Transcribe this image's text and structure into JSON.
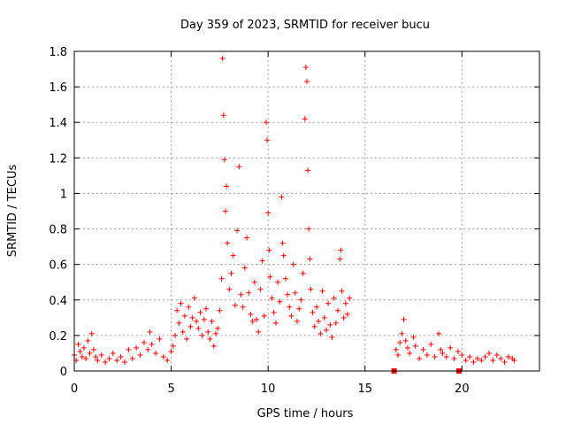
{
  "chart_data": {
    "type": "scatter",
    "title": "Day 359 of 2023, SRMTID for receiver bucu",
    "xlabel": "GPS time / hours",
    "ylabel": "SRMTID / TECUs",
    "xlim": [
      0,
      24
    ],
    "ylim": [
      0,
      1.8
    ],
    "xticks": [
      0,
      5,
      10,
      15,
      20
    ],
    "xtick_labels": [
      "0",
      "5",
      "10",
      "15",
      "20"
    ],
    "yticks": [
      0,
      0.2,
      0.4,
      0.6,
      0.8,
      1,
      1.2,
      1.4,
      1.6,
      1.8
    ],
    "ytick_labels": [
      "0",
      "0.2",
      "0.4",
      "0.6",
      "0.8",
      "1",
      "1.2",
      "1.4",
      "1.6",
      "1.8"
    ],
    "grid": true,
    "series": [
      {
        "name": "SRMTID",
        "marker": "plus",
        "color": "#ff0000",
        "points": [
          [
            0.0,
            0.09
          ],
          [
            0.1,
            0.06
          ],
          [
            0.2,
            0.15
          ],
          [
            0.3,
            0.11
          ],
          [
            0.4,
            0.08
          ],
          [
            0.5,
            0.13
          ],
          [
            0.6,
            0.07
          ],
          [
            0.7,
            0.17
          ],
          [
            0.8,
            0.1
          ],
          [
            0.9,
            0.21
          ],
          [
            1.0,
            0.12
          ],
          [
            1.1,
            0.08
          ],
          [
            1.2,
            0.06
          ],
          [
            1.4,
            0.09
          ],
          [
            1.6,
            0.05
          ],
          [
            1.8,
            0.07
          ],
          [
            2.0,
            0.1
          ],
          [
            2.2,
            0.06
          ],
          [
            2.4,
            0.08
          ],
          [
            2.6,
            0.05
          ],
          [
            2.8,
            0.12
          ],
          [
            3.0,
            0.07
          ],
          [
            3.2,
            0.13
          ],
          [
            3.4,
            0.09
          ],
          [
            3.6,
            0.16
          ],
          [
            3.8,
            0.12
          ],
          [
            3.9,
            0.22
          ],
          [
            4.0,
            0.15
          ],
          [
            4.2,
            0.1
          ],
          [
            4.4,
            0.18
          ],
          [
            4.6,
            0.08
          ],
          [
            4.8,
            0.06
          ],
          [
            5.0,
            0.11
          ],
          [
            5.1,
            0.14
          ],
          [
            5.2,
            0.2
          ],
          [
            5.3,
            0.34
          ],
          [
            5.4,
            0.27
          ],
          [
            5.5,
            0.38
          ],
          [
            5.6,
            0.22
          ],
          [
            5.7,
            0.31
          ],
          [
            5.8,
            0.18
          ],
          [
            5.9,
            0.36
          ],
          [
            6.0,
            0.25
          ],
          [
            6.1,
            0.3
          ],
          [
            6.2,
            0.41
          ],
          [
            6.3,
            0.28
          ],
          [
            6.4,
            0.24
          ],
          [
            6.5,
            0.33
          ],
          [
            6.6,
            0.2
          ],
          [
            6.7,
            0.29
          ],
          [
            6.8,
            0.35
          ],
          [
            6.9,
            0.22
          ],
          [
            7.0,
            0.18
          ],
          [
            7.1,
            0.28
          ],
          [
            7.2,
            0.14
          ],
          [
            7.3,
            0.21
          ],
          [
            7.4,
            0.24
          ],
          [
            7.5,
            0.34
          ],
          [
            7.6,
            0.52
          ],
          [
            7.65,
            1.76
          ],
          [
            7.7,
            1.44
          ],
          [
            7.75,
            1.19
          ],
          [
            7.8,
            0.9
          ],
          [
            7.85,
            1.04
          ],
          [
            7.9,
            0.72
          ],
          [
            8.0,
            0.46
          ],
          [
            8.1,
            0.55
          ],
          [
            8.2,
            0.65
          ],
          [
            8.3,
            0.37
          ],
          [
            8.4,
            0.79
          ],
          [
            8.5,
            1.15
          ],
          [
            8.6,
            0.43
          ],
          [
            8.7,
            0.36
          ],
          [
            8.8,
            0.58
          ],
          [
            8.9,
            0.75
          ],
          [
            9.0,
            0.44
          ],
          [
            9.1,
            0.32
          ],
          [
            9.2,
            0.28
          ],
          [
            9.3,
            0.5
          ],
          [
            9.4,
            0.29
          ],
          [
            9.5,
            0.22
          ],
          [
            9.6,
            0.46
          ],
          [
            9.7,
            0.62
          ],
          [
            9.8,
            0.31
          ],
          [
            9.9,
            1.4
          ],
          [
            9.95,
            1.3
          ],
          [
            10.0,
            0.89
          ],
          [
            10.05,
            0.68
          ],
          [
            10.1,
            0.53
          ],
          [
            10.2,
            0.41
          ],
          [
            10.3,
            0.33
          ],
          [
            10.4,
            0.27
          ],
          [
            10.5,
            0.5
          ],
          [
            10.6,
            0.39
          ],
          [
            10.7,
            0.98
          ],
          [
            10.75,
            0.72
          ],
          [
            10.8,
            0.65
          ],
          [
            10.9,
            0.52
          ],
          [
            11.0,
            0.43
          ],
          [
            11.1,
            0.36
          ],
          [
            11.2,
            0.31
          ],
          [
            11.3,
            0.6
          ],
          [
            11.4,
            0.44
          ],
          [
            11.5,
            0.28
          ],
          [
            11.6,
            0.35
          ],
          [
            11.7,
            0.4
          ],
          [
            11.8,
            0.55
          ],
          [
            11.9,
            1.42
          ],
          [
            11.95,
            1.71
          ],
          [
            12.0,
            1.63
          ],
          [
            12.05,
            1.13
          ],
          [
            12.1,
            0.8
          ],
          [
            12.15,
            0.63
          ],
          [
            12.2,
            0.46
          ],
          [
            12.3,
            0.33
          ],
          [
            12.4,
            0.25
          ],
          [
            12.5,
            0.36
          ],
          [
            12.6,
            0.28
          ],
          [
            12.7,
            0.21
          ],
          [
            12.8,
            0.45
          ],
          [
            12.9,
            0.3
          ],
          [
            13.0,
            0.23
          ],
          [
            13.1,
            0.38
          ],
          [
            13.2,
            0.26
          ],
          [
            13.3,
            0.19
          ],
          [
            13.4,
            0.41
          ],
          [
            13.5,
            0.27
          ],
          [
            13.6,
            0.34
          ],
          [
            13.7,
            0.63
          ],
          [
            13.75,
            0.68
          ],
          [
            13.8,
            0.45
          ],
          [
            13.9,
            0.3
          ],
          [
            14.0,
            0.38
          ],
          [
            14.1,
            0.32
          ],
          [
            14.2,
            0.41
          ],
          [
            16.6,
            0.12
          ],
          [
            16.7,
            0.09
          ],
          [
            16.8,
            0.16
          ],
          [
            16.9,
            0.21
          ],
          [
            17.0,
            0.29
          ],
          [
            17.1,
            0.17
          ],
          [
            17.2,
            0.13
          ],
          [
            17.3,
            0.1
          ],
          [
            17.5,
            0.19
          ],
          [
            17.6,
            0.14
          ],
          [
            17.8,
            0.07
          ],
          [
            18.0,
            0.12
          ],
          [
            18.2,
            0.09
          ],
          [
            18.4,
            0.15
          ],
          [
            18.6,
            0.08
          ],
          [
            18.8,
            0.21
          ],
          [
            18.9,
            0.12
          ],
          [
            19.0,
            0.1
          ],
          [
            19.2,
            0.08
          ],
          [
            19.4,
            0.13
          ],
          [
            19.6,
            0.07
          ],
          [
            19.8,
            0.11
          ],
          [
            20.0,
            0.09
          ],
          [
            20.2,
            0.06
          ],
          [
            20.4,
            0.08
          ],
          [
            20.6,
            0.05
          ],
          [
            20.8,
            0.07
          ],
          [
            21.0,
            0.06
          ],
          [
            21.2,
            0.08
          ],
          [
            21.4,
            0.1
          ],
          [
            21.6,
            0.06
          ],
          [
            21.8,
            0.09
          ],
          [
            22.0,
            0.07
          ],
          [
            22.2,
            0.05
          ],
          [
            22.4,
            0.08
          ],
          [
            22.6,
            0.07
          ],
          [
            22.7,
            0.06
          ]
        ]
      },
      {
        "name": "Zero markers",
        "marker": "square",
        "color": "#ff0000",
        "points": [
          [
            16.5,
            0.0
          ],
          [
            19.85,
            0.0
          ]
        ]
      }
    ]
  }
}
